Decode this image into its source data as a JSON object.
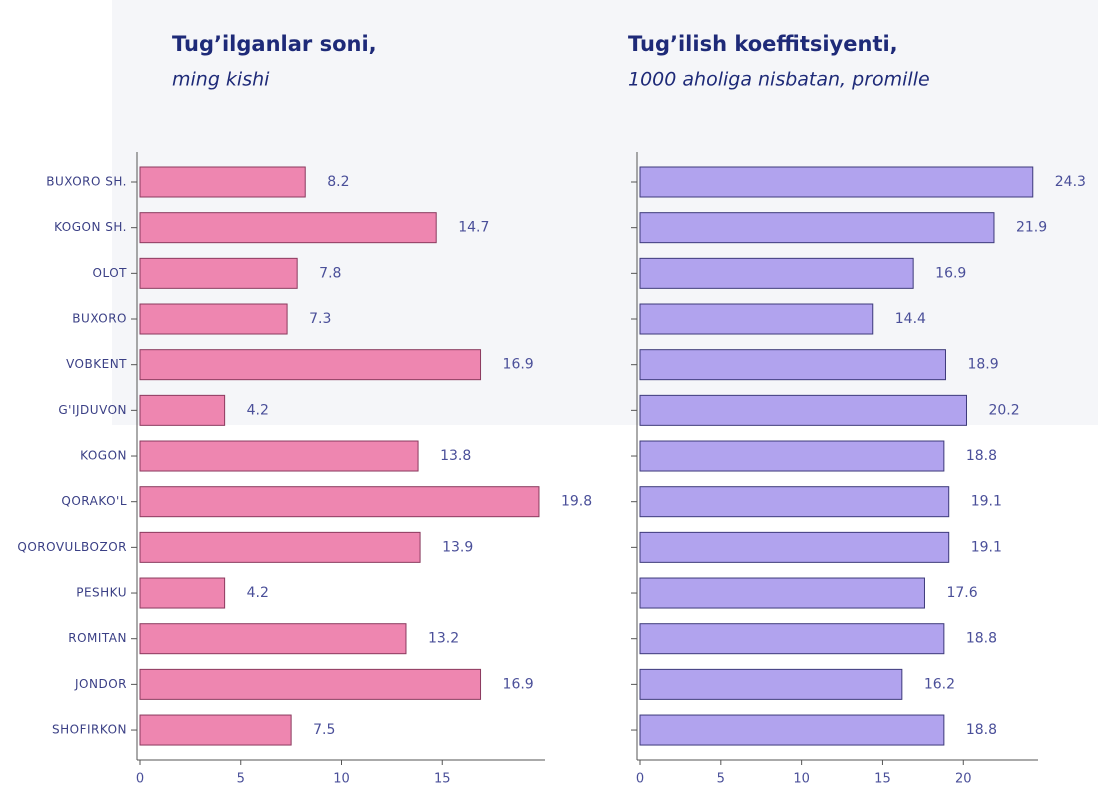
{
  "chart_data": [
    {
      "type": "barh",
      "title": "Tug’ilganlar soni,",
      "subtitle": "ming kishi",
      "categories": [
        "BUXORO SH.",
        "KOGON SH.",
        "OLOT",
        "BUXORO",
        "VOBKENT",
        "G'IJDUVON",
        "KOGON",
        "QORAKO'L",
        "QOROVULBOZOR",
        "PESHKU",
        "ROMITAN",
        "JONDOR",
        "SHOFIRKON"
      ],
      "values": [
        8.2,
        14.7,
        7.8,
        7.3,
        16.9,
        4.2,
        13.8,
        19.8,
        13.9,
        4.2,
        13.2,
        16.9,
        7.5
      ],
      "color": "#ee86b0",
      "xlim": [
        0,
        20
      ],
      "xticks": [
        0,
        5,
        10,
        15
      ]
    },
    {
      "type": "barh",
      "title": "Tug’ilish koeffitsiyenti,",
      "subtitle": "1000 aholiga nisbatan, promille",
      "values": [
        24.3,
        21.9,
        16.9,
        14.4,
        18.9,
        20.2,
        18.8,
        19.1,
        19.1,
        17.6,
        18.8,
        16.2,
        18.8
      ],
      "color": "#b1a3ee",
      "xlim": [
        0,
        24.5
      ],
      "xticks": [
        0,
        5,
        10,
        15,
        20
      ]
    }
  ]
}
